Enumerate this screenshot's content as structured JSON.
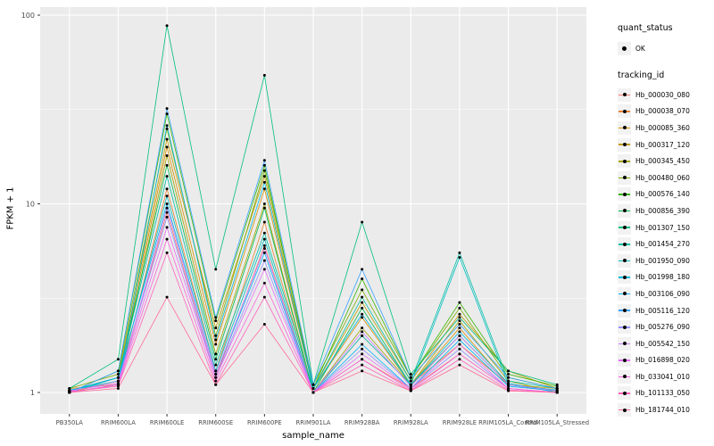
{
  "chart_data": {
    "type": "line",
    "title": "",
    "xlabel": "sample_name",
    "ylabel": "FPKM + 1",
    "yscale": "log10",
    "ylim": [
      0.93,
      110
    ],
    "yticks": [
      1,
      10,
      100
    ],
    "ytick_labels": [
      "1",
      "10",
      "100"
    ],
    "grid": true,
    "panel_bg": "#EBEBEB",
    "grid_color": "#FFFFFF",
    "point_color": "#000000",
    "legend_position": "right",
    "categories": [
      "PB350LA",
      "RRIM600LA",
      "RRIM600LE",
      "RRIM600SE",
      "RRIM600PE",
      "RRIM901LA",
      "RRIM928BA",
      "RRIM928LA",
      "RRIM928LE",
      "RRIM105LA_Control",
      "RRIM105LA_Stressed"
    ],
    "series": [
      {
        "name": "Hb_000030_080",
        "color": "#F8766D",
        "values": [
          1.0,
          1.1,
          9.0,
          1.2,
          6.0,
          1.0,
          1.5,
          1.05,
          1.6,
          1.05,
          1.0
        ]
      },
      {
        "name": "Hb_000038_070",
        "color": "#EA8331",
        "values": [
          1.05,
          1.1,
          12.0,
          1.3,
          8.0,
          1.0,
          2.0,
          1.1,
          1.8,
          1.1,
          1.02
        ]
      },
      {
        "name": "Hb_000085_360",
        "color": "#D89000",
        "values": [
          1.0,
          1.15,
          20.0,
          1.8,
          12.0,
          1.05,
          2.5,
          1.1,
          2.2,
          1.1,
          1.05
        ]
      },
      {
        "name": "Hb_000317_120",
        "color": "#C09B00",
        "values": [
          1.02,
          1.2,
          22.0,
          2.2,
          14.0,
          1.05,
          3.0,
          1.15,
          2.6,
          1.3,
          1.05
        ]
      },
      {
        "name": "Hb_000345_450",
        "color": "#A3A500",
        "values": [
          1.0,
          1.1,
          18.0,
          1.6,
          10.0,
          1.0,
          2.2,
          1.1,
          2.4,
          1.15,
          1.0
        ]
      },
      {
        "name": "Hb_000480_060",
        "color": "#7CAE00",
        "values": [
          1.05,
          1.25,
          25.0,
          2.0,
          15.0,
          1.1,
          3.5,
          1.2,
          2.8,
          1.2,
          1.05
        ]
      },
      {
        "name": "Hb_000576_140",
        "color": "#39B600",
        "values": [
          1.0,
          1.3,
          30.0,
          2.4,
          16.0,
          1.05,
          4.0,
          1.2,
          3.0,
          1.25,
          1.08
        ]
      },
      {
        "name": "Hb_000856_390",
        "color": "#00BB4E",
        "values": [
          1.02,
          1.2,
          16.0,
          1.5,
          9.5,
          1.0,
          2.8,
          1.1,
          2.0,
          1.1,
          1.02
        ]
      },
      {
        "name": "Hb_001307_150",
        "color": "#00BF7D",
        "values": [
          1.05,
          1.5,
          88.0,
          4.5,
          48.0,
          1.1,
          8.0,
          1.25,
          2.5,
          1.3,
          1.1
        ]
      },
      {
        "name": "Hb_001454_270",
        "color": "#00C1A3",
        "values": [
          1.0,
          1.2,
          14.0,
          1.4,
          7.0,
          1.05,
          3.2,
          1.15,
          5.5,
          1.15,
          1.05
        ]
      },
      {
        "name": "Hb_001950_090",
        "color": "#00BFC4",
        "values": [
          1.03,
          1.15,
          11.0,
          1.3,
          6.5,
          1.0,
          2.0,
          1.1,
          5.2,
          1.1,
          1.03
        ]
      },
      {
        "name": "Hb_001998_180",
        "color": "#00BAE0",
        "values": [
          1.0,
          1.1,
          26.0,
          1.9,
          13.0,
          1.05,
          2.6,
          1.1,
          2.1,
          1.12,
          1.0
        ]
      },
      {
        "name": "Hb_003106_090",
        "color": "#00B0F6",
        "values": [
          1.02,
          1.2,
          10.0,
          1.25,
          5.5,
          1.0,
          1.8,
          1.05,
          1.9,
          1.08,
          1.02
        ]
      },
      {
        "name": "Hb_005116_120",
        "color": "#35A2FF",
        "values": [
          1.0,
          1.3,
          32.0,
          2.5,
          17.0,
          1.1,
          4.5,
          1.2,
          2.3,
          1.2,
          1.05
        ]
      },
      {
        "name": "Hb_005276_090",
        "color": "#9590FF",
        "values": [
          1.01,
          1.15,
          8.5,
          1.2,
          5.0,
          1.0,
          1.7,
          1.05,
          1.7,
          1.05,
          1.0
        ]
      },
      {
        "name": "Hb_005542_150",
        "color": "#C77CFF",
        "values": [
          1.0,
          1.1,
          9.5,
          1.25,
          5.8,
          1.0,
          2.1,
          1.08,
          2.0,
          1.1,
          1.02
        ]
      },
      {
        "name": "Hb_016898_020",
        "color": "#E76BF3",
        "values": [
          1.02,
          1.12,
          7.5,
          1.2,
          4.5,
          1.0,
          1.6,
          1.05,
          1.8,
          1.05,
          1.0
        ]
      },
      {
        "name": "Hb_033041_010",
        "color": "#FA62DB",
        "values": [
          1.0,
          1.1,
          6.5,
          1.15,
          3.8,
          1.0,
          1.5,
          1.03,
          1.6,
          1.05,
          1.0
        ]
      },
      {
        "name": "Hb_101133_050",
        "color": "#FF62BC",
        "values": [
          1.01,
          1.08,
          5.5,
          1.1,
          3.2,
          1.0,
          1.4,
          1.02,
          1.5,
          1.03,
          1.0
        ]
      },
      {
        "name": "Hb_181744_010",
        "color": "#FF6A98",
        "values": [
          1.0,
          1.05,
          3.2,
          1.1,
          2.3,
          1.0,
          1.3,
          1.02,
          1.4,
          1.02,
          1.0
        ]
      }
    ]
  },
  "legend": {
    "quant_status_title": "quant_status",
    "quant_status_items": [
      {
        "label": "OK"
      }
    ],
    "tracking_id_title": "tracking_id"
  }
}
